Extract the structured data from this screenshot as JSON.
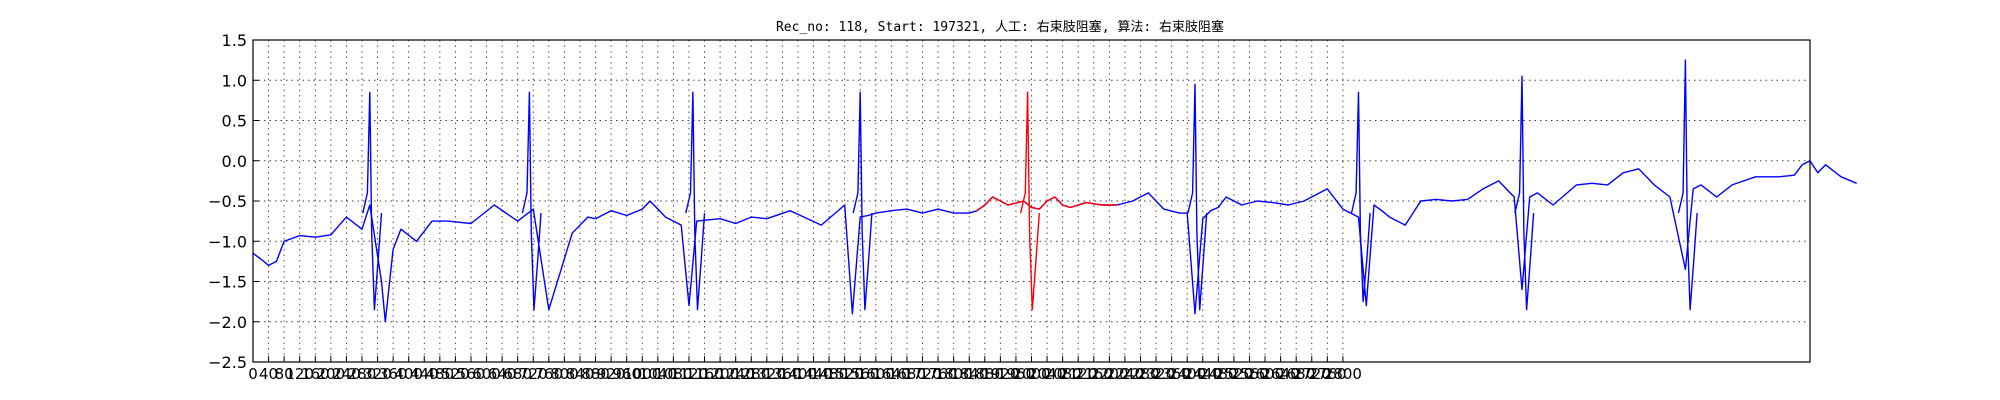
{
  "chart_data": {
    "type": "line",
    "title": "Rec_no: 118, Start: 197321, 人工: 右束肢阻塞, 算法: 右束肢阻塞",
    "xlim": [
      0,
      4000
    ],
    "ylim": [
      -2.5,
      1.5
    ],
    "yticks": [
      "−2.5",
      "−2.0",
      "−1.5",
      "−1.0",
      "−0.5",
      "0.0",
      "0.5",
      "1.0",
      "1.5"
    ],
    "xtick_step": 40,
    "xtick_count": 71,
    "grid": true,
    "colors": {
      "normal": "#0000ff",
      "highlight": "#ff0000"
    },
    "beats_x": [
      300,
      710,
      1130,
      1560,
      1990,
      2420,
      2840,
      3260,
      3680
    ],
    "highlight_range": [
      1860,
      2220
    ],
    "series": [
      {
        "color": "#0000ff",
        "x": [
          0,
          20,
          40,
          60,
          80,
          120,
          160,
          200,
          240,
          280,
          300,
          330,
          340,
          360,
          380,
          420,
          460,
          500,
          560,
          620,
          680,
          720,
          760,
          820,
          860,
          880,
          920,
          960,
          1000,
          1020,
          1060,
          1100,
          1120,
          1140,
          1200,
          1240,
          1280,
          1320,
          1380,
          1460,
          1520,
          1540,
          1560,
          1580,
          1600,
          1640,
          1680,
          1720,
          1760,
          1800,
          1840,
          1860,
          1860,
          1880,
          1900,
          1940,
          1980,
          2000,
          2020,
          2040,
          2060,
          2080,
          2100,
          2140,
          2180,
          2220,
          2220,
          2260,
          2300,
          2340,
          2380,
          2400,
          2420,
          2440,
          2460,
          2480,
          2500,
          2540,
          2580,
          2620,
          2660,
          2700,
          2760,
          2800,
          2840,
          2860,
          2880,
          2900,
          2920,
          2960,
          3000,
          3040,
          3080,
          3120,
          3160,
          3200,
          3240,
          3260,
          3280,
          3300,
          3340,
          3400,
          3440,
          3480,
          3520,
          3560,
          3600,
          3640,
          3680,
          3700,
          3720,
          3760,
          3800,
          3860,
          3920,
          3960,
          3980,
          4000,
          4020,
          4040,
          4080,
          4120
        ],
        "y": [
          -1.15,
          -1.22,
          -1.3,
          -1.25,
          -1.0,
          -0.93,
          -0.95,
          -0.92,
          -0.7,
          -0.85,
          -0.55,
          -1.5,
          -2.0,
          -1.1,
          -0.85,
          -1.0,
          -0.75,
          -0.75,
          -0.78,
          -0.55,
          -0.75,
          -0.6,
          -1.85,
          -0.9,
          -0.7,
          -0.72,
          -0.62,
          -0.68,
          -0.6,
          -0.5,
          -0.7,
          -0.8,
          -1.8,
          -0.75,
          -0.72,
          -0.78,
          -0.7,
          -0.72,
          -0.62,
          -0.8,
          -0.55,
          -1.9,
          -0.7,
          -0.68,
          -0.65,
          -0.62,
          -0.6,
          -0.65,
          -0.6,
          -0.65,
          -0.65,
          -0.62,
          -0.62,
          -0.55,
          -0.45,
          -0.55,
          -0.5,
          -0.58,
          -0.6,
          -0.5,
          -0.45,
          -0.55,
          -0.58,
          -0.52,
          -0.55,
          -0.55,
          -0.55,
          -0.5,
          -0.4,
          -0.6,
          -0.65,
          -0.65,
          -1.9,
          -0.72,
          -0.62,
          -0.58,
          -0.45,
          -0.55,
          -0.5,
          -0.52,
          -0.55,
          -0.5,
          -0.35,
          -0.6,
          -0.7,
          -1.8,
          -0.55,
          -0.62,
          -0.7,
          -0.8,
          -0.5,
          -0.48,
          -0.5,
          -0.48,
          -0.35,
          -0.25,
          -0.45,
          -1.6,
          -0.45,
          -0.4,
          -0.55,
          -0.3,
          -0.28,
          -0.3,
          -0.15,
          -0.1,
          -0.3,
          -0.45,
          -1.35,
          -0.35,
          -0.3,
          -0.45,
          -0.3,
          -0.2,
          -0.2,
          -0.18,
          -0.05,
          0.0,
          -0.15,
          -0.05,
          -0.2,
          -0.28
        ]
      },
      {
        "color": "#ff0000",
        "x": [
          1860,
          1880,
          1900,
          1940,
          1980,
          2000,
          2020,
          2040,
          2060,
          2080,
          2100,
          2140,
          2180,
          2220
        ],
        "y": [
          -0.62,
          -0.55,
          -0.45,
          -0.55,
          -0.5,
          -0.58,
          -0.6,
          -0.5,
          -0.45,
          -0.55,
          -0.58,
          -0.52,
          -0.55,
          -0.55
        ]
      }
    ]
  }
}
